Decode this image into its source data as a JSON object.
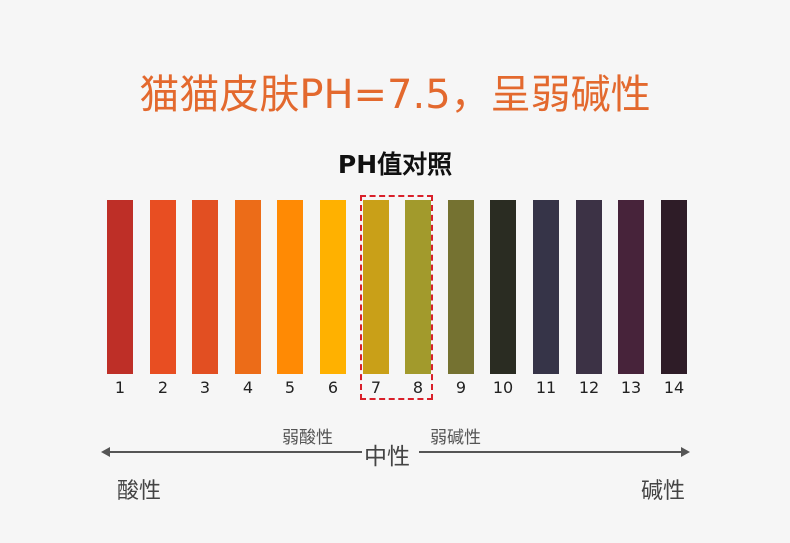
{
  "title": "猫猫皮肤PH=7.5，呈弱碱性",
  "subtitle": "PH值对照",
  "colors": {
    "title": "#e3692e",
    "highlight_border": "#d9202a"
  },
  "scale": [
    {
      "value": "1",
      "color": "#be2f27"
    },
    {
      "value": "2",
      "color": "#e84e22"
    },
    {
      "value": "3",
      "color": "#e24f22"
    },
    {
      "value": "4",
      "color": "#ec6c18"
    },
    {
      "value": "5",
      "color": "#ff8a04"
    },
    {
      "value": "6",
      "color": "#ffb100"
    },
    {
      "value": "7",
      "color": "#c9a018"
    },
    {
      "value": "8",
      "color": "#a29a2c"
    },
    {
      "value": "9",
      "color": "#757231"
    },
    {
      "value": "10",
      "color": "#2a2c22"
    },
    {
      "value": "11",
      "color": "#363448"
    },
    {
      "value": "12",
      "color": "#3c3245"
    },
    {
      "value": "13",
      "color": "#47233a"
    },
    {
      "value": "14",
      "color": "#2e1c27"
    }
  ],
  "highlighted_values": [
    "7",
    "8"
  ],
  "axis": {
    "weak_acid": "弱酸性",
    "neutral": "中性",
    "weak_base": "弱碱性",
    "acid": "酸性",
    "base": "碱性"
  }
}
